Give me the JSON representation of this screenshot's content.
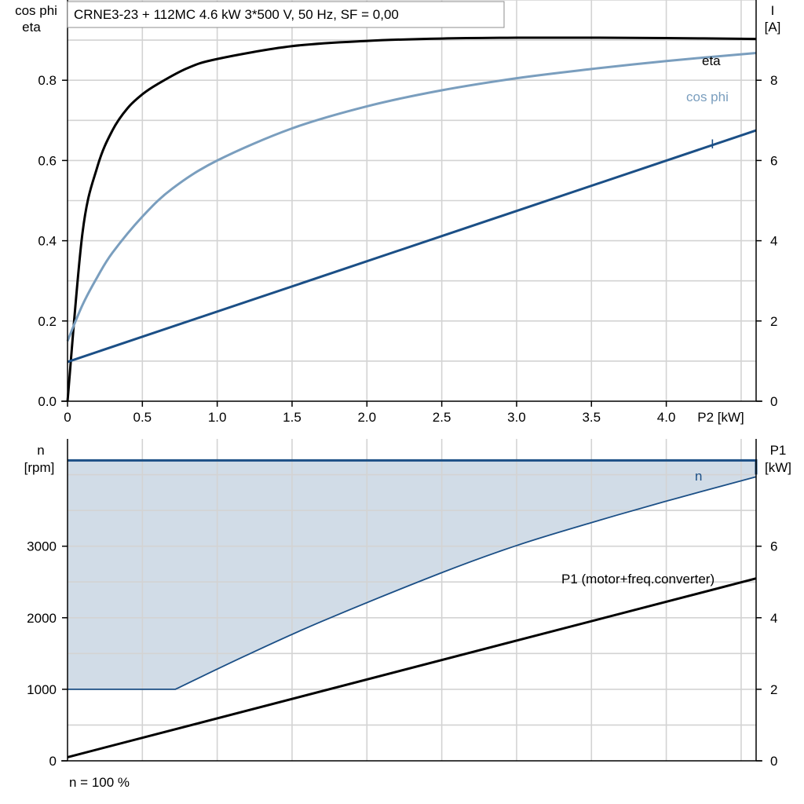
{
  "title": "CRNE3-23 + 112MC   4.6 kW   3*500 V, 50 Hz, SF = 0,00",
  "footer": "n = 100 %",
  "colors": {
    "eta": "#000000",
    "cos_phi": "#7a9ebe",
    "current": "#1b4f86",
    "speed": "#1b4f86",
    "fill": "#d1dce7",
    "grid": "#d3d3d3",
    "p1": "#000000"
  },
  "chart_data": [
    {
      "type": "line",
      "xlabel": "P2 [kW]",
      "ylabel_left": [
        "cos phi",
        "eta"
      ],
      "ylabel_right": [
        "I",
        "[A]"
      ],
      "xlim": [
        0,
        4.6
      ],
      "ylim": [
        0,
        1.0
      ],
      "ylim_right": [
        0,
        10
      ],
      "xticks": [
        0,
        0.5,
        1.0,
        1.5,
        2.0,
        2.5,
        3.0,
        3.5,
        4.0
      ],
      "xtick_labels": [
        "0",
        "0.5",
        "1.0",
        "1.5",
        "2.0",
        "2.5",
        "3.0",
        "3.5",
        "4.0"
      ],
      "yticks": [
        0,
        0.2,
        0.4,
        0.6,
        0.8
      ],
      "ytick_labels": [
        "0.0",
        "0.2",
        "0.4",
        "0.6",
        "0.8"
      ],
      "yticks_right": [
        0,
        2,
        4,
        6,
        8
      ],
      "ytick_labels_right": [
        "0",
        "2",
        "4",
        "6",
        "8"
      ],
      "grid": true,
      "series": [
        {
          "name": "eta",
          "key": "eta",
          "axis": "left",
          "x": [
            0,
            0.1,
            0.2,
            0.3,
            0.4,
            0.5,
            0.6,
            0.8,
            1.0,
            1.5,
            2.0,
            2.5,
            3.0,
            3.5,
            4.0,
            4.6
          ],
          "y": [
            0,
            0.42,
            0.585,
            0.675,
            0.73,
            0.765,
            0.79,
            0.83,
            0.853,
            0.885,
            0.898,
            0.904,
            0.906,
            0.906,
            0.905,
            0.903
          ]
        },
        {
          "name": "cos phi",
          "key": "cos_phi",
          "axis": "left",
          "x": [
            0,
            0.1,
            0.2,
            0.3,
            0.5,
            0.7,
            1.0,
            1.5,
            2.0,
            2.5,
            3.0,
            3.5,
            4.0,
            4.6
          ],
          "y": [
            0.15,
            0.24,
            0.31,
            0.37,
            0.46,
            0.53,
            0.6,
            0.68,
            0.735,
            0.775,
            0.805,
            0.828,
            0.848,
            0.868
          ]
        },
        {
          "name": "I",
          "key": "current",
          "axis": "right",
          "x": [
            0,
            4.6
          ],
          "y": [
            0.98,
            6.75
          ]
        }
      ]
    },
    {
      "type": "line",
      "xlim": [
        0,
        4.6
      ],
      "ylabel_left": [
        "n",
        "[rpm]"
      ],
      "ylabel_right": [
        "P1",
        "[kW]"
      ],
      "ylim": [
        0,
        4500
      ],
      "ylim_right": [
        0,
        9
      ],
      "yticks": [
        0,
        1000,
        2000,
        3000
      ],
      "ytick_labels": [
        "0",
        "1000",
        "2000",
        "3000"
      ],
      "yticks_right": [
        0,
        2,
        4,
        6
      ],
      "ytick_labels_right": [
        "0",
        "2",
        "4",
        "6"
      ],
      "grid": true,
      "area": {
        "key": "speed_range",
        "upper": {
          "x": [
            0,
            4.6
          ],
          "y": [
            4200,
            4200
          ]
        },
        "lower": {
          "x": [
            0,
            0.72,
            1.2,
            1.7,
            2.5,
            3.0,
            3.5,
            4.0,
            4.6
          ],
          "y": [
            1000,
            1000,
            1480,
            1950,
            2630,
            3010,
            3330,
            3630,
            3970
          ]
        }
      },
      "series": [
        {
          "name": "n",
          "key": "speed",
          "axis": "left",
          "x": [
            0.72,
            1.2,
            1.7,
            2.5,
            3.0,
            3.5,
            4.0,
            4.6
          ],
          "y": [
            1000,
            1480,
            1950,
            2630,
            3010,
            3330,
            3630,
            3970
          ]
        },
        {
          "name": "P1 (motor+freq.converter)",
          "key": "p1",
          "axis": "right",
          "x": [
            0,
            4.6
          ],
          "y": [
            0.1,
            5.1
          ]
        }
      ]
    }
  ]
}
